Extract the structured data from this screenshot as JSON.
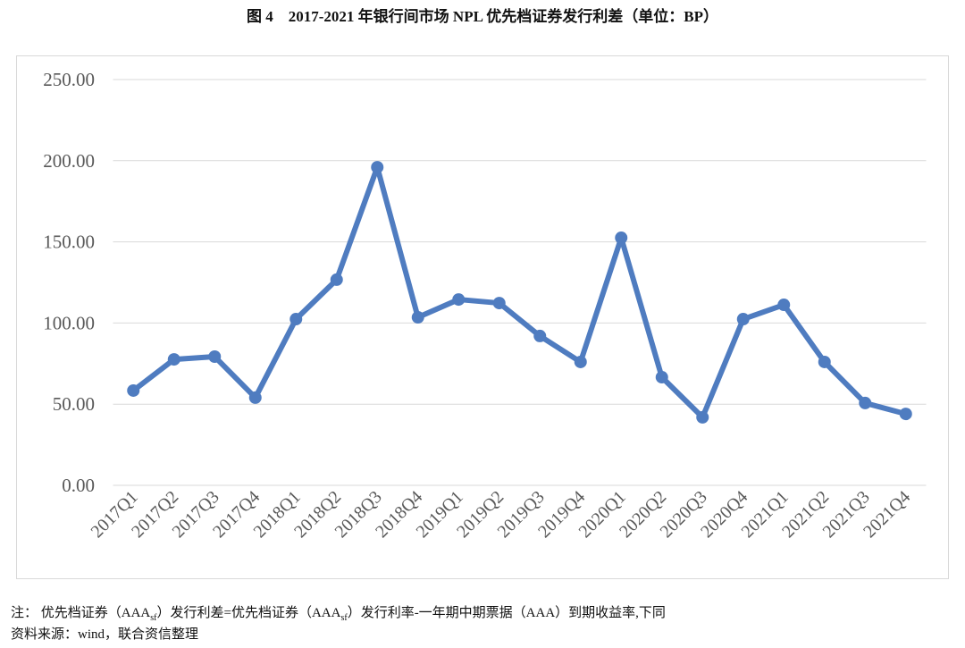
{
  "title": "图 4　2017-2021 年银行间市场 NPL 优先档证券发行利差（单位：BP）",
  "chart_data": {
    "type": "line",
    "title": "图 4　2017-2021 年银行间市场 NPL 优先档证券发行利差（单位：BP）",
    "categories": [
      "2017Q1",
      "2017Q2",
      "2017Q3",
      "2017Q4",
      "2018Q1",
      "2018Q2",
      "2018Q3",
      "2018Q4",
      "2019Q1",
      "2019Q2",
      "2019Q3",
      "2019Q4",
      "2020Q1",
      "2020Q2",
      "2020Q3",
      "2020Q4",
      "2021Q1",
      "2021Q2",
      "2021Q3",
      "2021Q4"
    ],
    "series": [
      {
        "values": [
          58.4,
          77.6,
          79.3,
          54.0,
          102.4,
          126.7,
          196.0,
          103.5,
          114.5,
          112.3,
          92.0,
          76.0,
          152.5,
          66.6,
          41.9,
          102.4,
          111.2,
          76.0,
          50.7,
          44.0
        ]
      }
    ],
    "yticks": [
      "0.00",
      "50.00",
      "100.00",
      "150.00",
      "200.00",
      "250.00"
    ],
    "ylim": [
      0,
      250
    ],
    "grid": true,
    "color": "#4f7cc0",
    "xlabel": "",
    "ylabel": ""
  },
  "notes": {
    "note_a": "注：  优先档证券（AAA",
    "sub1": "sf",
    "note_b": "）发行利差=优先档证券（AAA",
    "sub2": "sf",
    "note_c": "）发行利率-一年期中期票据（AAA）到期收益率,下同",
    "source": "资料来源：wind，联合资信整理"
  }
}
